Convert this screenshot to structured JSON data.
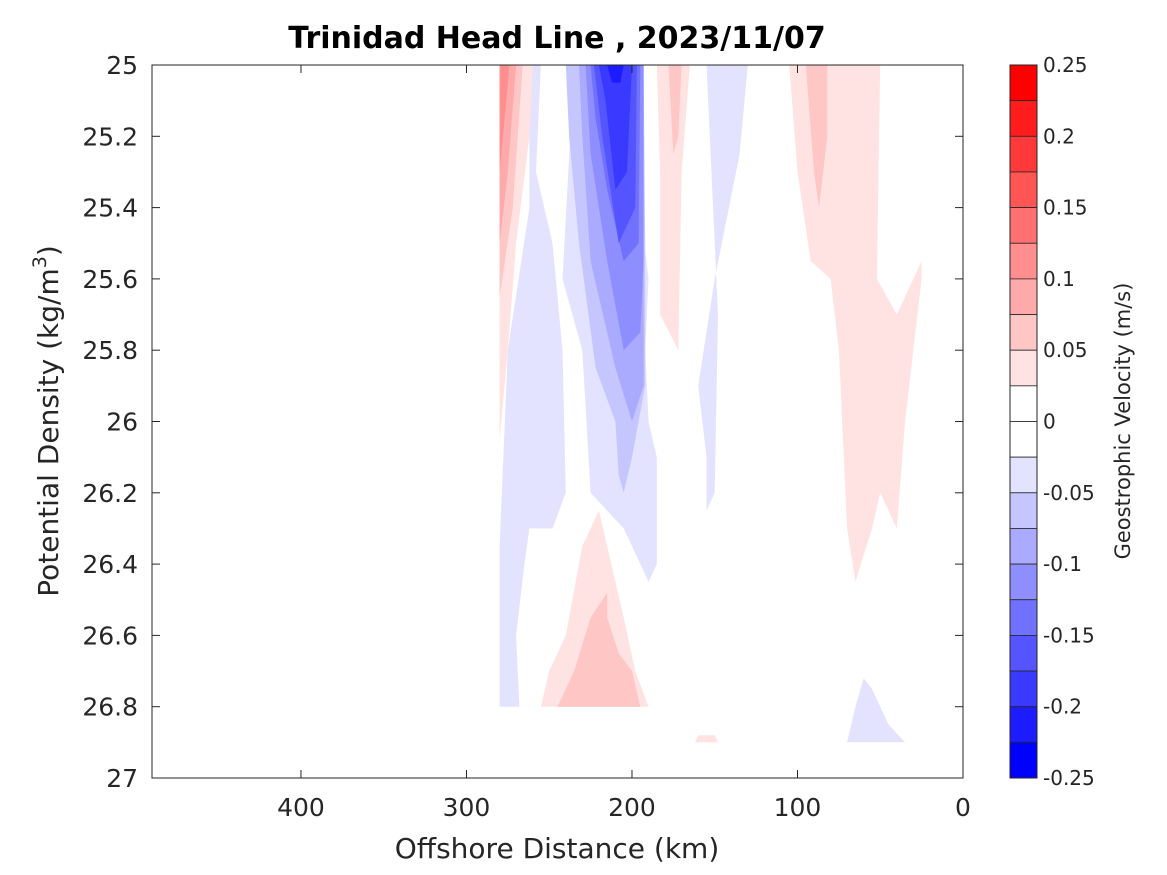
{
  "chart_data": {
    "type": "heatmap",
    "title": "Trinidad Head Line , 2023/11/07",
    "xlabel": "Offshore Distance (km)",
    "ylabel": "Potential Density (kg/m",
    "ylabel_superscript": "3",
    "ylabel_suffix": ")",
    "xlim": [
      490,
      0
    ],
    "ylim": [
      25,
      27
    ],
    "x_ticks": [
      400,
      300,
      200,
      100,
      0
    ],
    "y_ticks": [
      25,
      25.2,
      25.4,
      25.6,
      25.8,
      26,
      26.2,
      26.4,
      26.6,
      26.8,
      27
    ],
    "y_tick_labels": [
      "25",
      "25.2",
      "25.4",
      "25.6",
      "25.8",
      "26",
      "26.2",
      "26.4",
      "26.6",
      "26.8",
      "27"
    ],
    "colorbar": {
      "label": "Geostrophic Velocity (m/s)",
      "range": [
        -0.25,
        0.25
      ],
      "ticks": [
        0.25,
        0.2,
        0.15,
        0.1,
        0.05,
        0,
        -0.05,
        -0.1,
        -0.15,
        -0.2,
        -0.25
      ],
      "tick_labels": [
        "0.25",
        "0.2",
        "0.15",
        "0.1",
        "0.05",
        "0",
        "-0.05",
        "-0.1",
        "-0.15",
        "-0.2",
        "-0.25"
      ],
      "levels": [
        {
          "lo": 0.225,
          "hi": 0.25,
          "color": "#ff0000"
        },
        {
          "lo": 0.2,
          "hi": 0.225,
          "color": "#ff1c1c"
        },
        {
          "lo": 0.175,
          "hi": 0.2,
          "color": "#ff3939"
        },
        {
          "lo": 0.15,
          "hi": 0.175,
          "color": "#ff5555"
        },
        {
          "lo": 0.125,
          "hi": 0.15,
          "color": "#ff7171"
        },
        {
          "lo": 0.1,
          "hi": 0.125,
          "color": "#ff8e8e"
        },
        {
          "lo": 0.075,
          "hi": 0.1,
          "color": "#ffaaaa"
        },
        {
          "lo": 0.05,
          "hi": 0.075,
          "color": "#ffc6c6"
        },
        {
          "lo": 0.025,
          "hi": 0.05,
          "color": "#ffe3e3"
        },
        {
          "lo": 0,
          "hi": 0.025,
          "color": "#ffffff"
        },
        {
          "lo": -0.025,
          "hi": 0,
          "color": "#ffffff"
        },
        {
          "lo": -0.05,
          "hi": -0.025,
          "color": "#e3e3ff"
        },
        {
          "lo": -0.075,
          "hi": -0.05,
          "color": "#c6c6ff"
        },
        {
          "lo": -0.1,
          "hi": -0.075,
          "color": "#aaaaff"
        },
        {
          "lo": -0.125,
          "hi": -0.1,
          "color": "#8e8eff"
        },
        {
          "lo": -0.15,
          "hi": -0.125,
          "color": "#7171ff"
        },
        {
          "lo": -0.175,
          "hi": -0.15,
          "color": "#5555ff"
        },
        {
          "lo": -0.2,
          "hi": -0.175,
          "color": "#3939ff"
        },
        {
          "lo": -0.225,
          "hi": -0.2,
          "color": "#1c1cff"
        },
        {
          "lo": -0.25,
          "hi": -0.225,
          "color": "#0000ff"
        }
      ]
    },
    "regions": [
      {
        "name": "southward-core-050",
        "value": -0.05,
        "color": "#e3e3ff",
        "points": [
          [
            255,
            25
          ],
          [
            235,
            25
          ],
          [
            242,
            25.6
          ],
          [
            230,
            25.8
          ],
          [
            225,
            26.2
          ],
          [
            205,
            26.3
          ],
          [
            195,
            26.4
          ],
          [
            190,
            26.45
          ],
          [
            185,
            26.4
          ],
          [
            185,
            26.1
          ],
          [
            190,
            26
          ],
          [
            192,
            25.8
          ],
          [
            190,
            25.6
          ],
          [
            195,
            25.4
          ],
          [
            193,
            25
          ],
          [
            225,
            25
          ],
          [
            262,
            25
          ],
          [
            262,
            25.4
          ],
          [
            275,
            25.8
          ],
          [
            280,
            26.35
          ],
          [
            280,
            26.8
          ],
          [
            268,
            26.8
          ],
          [
            270,
            26.6
          ],
          [
            265,
            26.4
          ],
          [
            262,
            26.3
          ],
          [
            248,
            26.3
          ],
          [
            240,
            26.2
          ],
          [
            242,
            25.8
          ],
          [
            248,
            25.5
          ],
          [
            258,
            25.3
          ]
        ]
      },
      {
        "name": "southward-core-075",
        "value": -0.075,
        "color": "#c6c6ff",
        "points": [
          [
            240,
            25
          ],
          [
            193,
            25
          ],
          [
            192,
            25.5
          ],
          [
            192,
            25.9
          ],
          [
            200,
            26.1
          ],
          [
            205,
            26.2
          ],
          [
            208,
            26.15
          ],
          [
            210,
            26
          ],
          [
            222,
            25.85
          ],
          [
            232,
            25.5
          ],
          [
            238,
            25.2
          ]
        ]
      },
      {
        "name": "southward-core-100",
        "value": -0.1,
        "color": "#aaaaff",
        "points": [
          [
            232,
            25
          ],
          [
            193,
            25
          ],
          [
            193,
            25.6
          ],
          [
            193,
            25.9
          ],
          [
            200,
            26
          ],
          [
            210,
            25.85
          ],
          [
            225,
            25.55
          ],
          [
            230,
            25.2
          ]
        ]
      },
      {
        "name": "southward-core-125",
        "value": -0.125,
        "color": "#8e8eff",
        "points": [
          [
            228,
            25
          ],
          [
            193,
            25
          ],
          [
            193,
            25.55
          ],
          [
            195,
            25.75
          ],
          [
            205,
            25.8
          ],
          [
            215,
            25.55
          ],
          [
            225,
            25.25
          ]
        ]
      },
      {
        "name": "southward-core-150",
        "value": -0.15,
        "color": "#7171ff",
        "points": [
          [
            225,
            25
          ],
          [
            195,
            25
          ],
          [
            196,
            25.5
          ],
          [
            205,
            25.55
          ],
          [
            215,
            25.35
          ],
          [
            222,
            25.15
          ]
        ]
      },
      {
        "name": "southward-core-175",
        "value": -0.175,
        "color": "#5555ff",
        "points": [
          [
            223,
            25
          ],
          [
            197,
            25
          ],
          [
            198,
            25.4
          ],
          [
            208,
            25.5
          ],
          [
            218,
            25.2
          ]
        ]
      },
      {
        "name": "southward-core-200",
        "value": -0.2,
        "color": "#3939ff",
        "points": [
          [
            220,
            25
          ],
          [
            200,
            25
          ],
          [
            203,
            25.3
          ],
          [
            210,
            25.35
          ],
          [
            216,
            25.1
          ]
        ]
      },
      {
        "name": "southward-core-225",
        "value": -0.225,
        "color": "#1c1cff",
        "points": [
          [
            215,
            25
          ],
          [
            205,
            25
          ],
          [
            207,
            25.05
          ],
          [
            212,
            25.05
          ]
        ]
      },
      {
        "name": "northward-edge-025",
        "value": 0.025,
        "color": "#ffe3e3",
        "points": [
          [
            280,
            25
          ],
          [
            260,
            25
          ],
          [
            262,
            25.2
          ],
          [
            270,
            25.5
          ],
          [
            275,
            25.8
          ],
          [
            280,
            26.05
          ]
        ]
      },
      {
        "name": "northward-edge-050",
        "value": 0.05,
        "color": "#ffc6c6",
        "points": [
          [
            280,
            25
          ],
          [
            266,
            25
          ],
          [
            272,
            25.4
          ],
          [
            280,
            25.65
          ]
        ]
      },
      {
        "name": "northward-edge-075",
        "value": 0.075,
        "color": "#ffaaaa",
        "points": [
          [
            280,
            25
          ],
          [
            270,
            25
          ],
          [
            275,
            25.3
          ],
          [
            280,
            25.5
          ]
        ]
      },
      {
        "name": "northward-edge-100",
        "value": 0.1,
        "color": "#ff8e8e",
        "points": [
          [
            280,
            25
          ],
          [
            274,
            25
          ],
          [
            278,
            25.2
          ],
          [
            280,
            25.3
          ]
        ]
      },
      {
        "name": "deep-northward-025",
        "value": 0.025,
        "color": "#ffe3e3",
        "points": [
          [
            255,
            26.8
          ],
          [
            190,
            26.8
          ],
          [
            198,
            26.7
          ],
          [
            205,
            26.55
          ],
          [
            210,
            26.45
          ],
          [
            215,
            26.35
          ],
          [
            220,
            26.25
          ],
          [
            230,
            26.35
          ],
          [
            240,
            26.6
          ],
          [
            250,
            26.7
          ]
        ]
      },
      {
        "name": "deep-northward-050",
        "value": 0.05,
        "color": "#ffc6c6",
        "points": [
          [
            245,
            26.8
          ],
          [
            195,
            26.8
          ],
          [
            200,
            26.7
          ],
          [
            208,
            26.65
          ],
          [
            215,
            26.55
          ],
          [
            215,
            26.48
          ],
          [
            225,
            26.55
          ],
          [
            235,
            26.7
          ]
        ]
      },
      {
        "name": "strip-170-025",
        "value": 0.025,
        "color": "#ffe3e3",
        "points": [
          [
            185,
            25
          ],
          [
            165,
            25
          ],
          [
            170,
            25.3
          ],
          [
            172,
            25.8
          ],
          [
            183,
            25.7
          ],
          [
            183,
            25.3
          ]
        ]
      },
      {
        "name": "strip-170-050",
        "value": 0.05,
        "color": "#ffc6c6",
        "points": [
          [
            178,
            25
          ],
          [
            170,
            25
          ],
          [
            172,
            25.2
          ],
          [
            175,
            25.25
          ]
        ]
      },
      {
        "name": "strip-150-025",
        "value": -0.025,
        "color": "#e3e3ff",
        "points": [
          [
            155,
            25
          ],
          [
            130,
            25
          ],
          [
            135,
            25.25
          ],
          [
            150,
            25.6
          ],
          [
            160,
            25.9
          ],
          [
            155,
            26.1
          ],
          [
            155,
            26.25
          ],
          [
            150,
            26.2
          ],
          [
            148,
            25.7
          ]
        ]
      },
      {
        "name": "offshore-east-025",
        "value": 0.025,
        "color": "#ffe3e3",
        "points": [
          [
            105,
            25
          ],
          [
            50,
            25
          ],
          [
            52,
            25.6
          ],
          [
            40,
            25.7
          ],
          [
            25,
            25.55
          ],
          [
            25,
            25.6
          ],
          [
            30,
            25.8
          ],
          [
            35,
            26
          ],
          [
            40,
            26.3
          ],
          [
            50,
            26.2
          ],
          [
            55,
            26.3
          ],
          [
            65,
            26.45
          ],
          [
            70,
            26.3
          ],
          [
            75,
            25.8
          ],
          [
            80,
            25.6
          ],
          [
            92,
            25.55
          ],
          [
            100,
            25.3
          ]
        ]
      },
      {
        "name": "offshore-east-050",
        "value": 0.05,
        "color": "#ffc6c6",
        "points": [
          [
            95,
            25
          ],
          [
            82,
            25
          ],
          [
            82,
            25.2
          ],
          [
            87,
            25.4
          ],
          [
            90,
            25.3
          ]
        ]
      },
      {
        "name": "deep-east-025",
        "value": -0.025,
        "color": "#e3e3ff",
        "points": [
          [
            70,
            26.9
          ],
          [
            35,
            26.9
          ],
          [
            45,
            26.85
          ],
          [
            55,
            26.75
          ],
          [
            60,
            26.72
          ],
          [
            65,
            26.8
          ]
        ]
      },
      {
        "name": "deep-150-025",
        "value": 0.025,
        "color": "#ffe3e3",
        "points": [
          [
            162,
            26.9
          ],
          [
            148,
            26.9
          ],
          [
            150,
            26.88
          ],
          [
            160,
            26.88
          ]
        ]
      }
    ]
  }
}
